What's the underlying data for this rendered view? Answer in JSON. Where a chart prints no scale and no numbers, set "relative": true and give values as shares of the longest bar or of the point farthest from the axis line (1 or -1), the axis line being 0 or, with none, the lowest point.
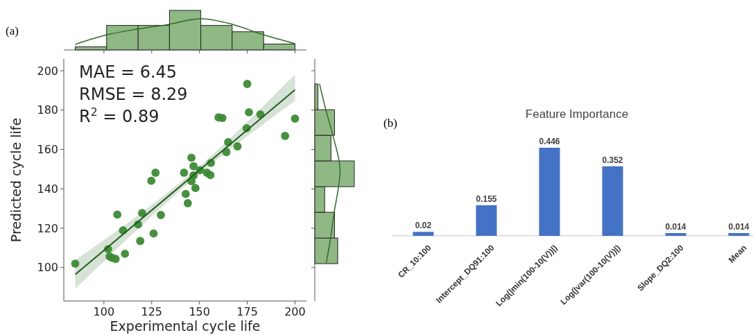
{
  "chart_data": [
    {
      "type": "histogram",
      "relative": true,
      "annotations": [
        "(a)"
      ],
      "xlim": [
        79,
        206
      ],
      "xticks": [
        100,
        125,
        150,
        175,
        200
      ],
      "tick_labels": false,
      "bins": [
        85,
        101.4,
        117.9,
        134.3,
        150.7,
        167.1,
        183.6,
        200
      ],
      "series": [
        {
          "type": "histogram",
          "color": "#8fb884",
          "values": [
            0.08,
            0.62,
            0.62,
            1,
            0.62,
            0.46,
            0.15
          ]
        },
        {
          "type": "line",
          "color": "#2f6b2a",
          "x": [
            85,
            101.4,
            117.9,
            134.3,
            150.7,
            167.1,
            183.6,
            200
          ],
          "values": [
            0.14,
            0.38,
            0.53,
            0.65,
            0.79,
            0.65,
            0.38,
            0.16
          ]
        }
      ]
    },
    {
      "type": "scatter",
      "xlabel": "Experimental cycle life",
      "ylabel": "Predicted cycle life",
      "xlim": [
        79,
        206
      ],
      "ylim": [
        83,
        206
      ],
      "xticks": [
        100,
        125,
        150,
        175,
        200
      ],
      "yticks": [
        100,
        120,
        140,
        160,
        180,
        200
      ],
      "annotations": [
        "MAE = 6.45",
        "RMSE = 8.29",
        "R$^{2}$ = 0.89"
      ],
      "series": [
        {
          "type": "scatter",
          "marker": "circle",
          "color": "#3d8a35",
          "x": [
            85,
            102.2,
            103,
            104.2,
            106.1,
            107,
            110,
            111,
            117.9,
            120,
            119,
            129.8,
            126,
            124.8,
            127,
            141.9,
            142.8,
            143.9,
            145.8,
            145.8,
            146.9,
            146.9,
            147.9,
            150.3,
            153.9,
            156,
            155.7,
            160,
            162,
            164.1,
            165,
            169.9,
            174.7,
            175,
            175.9,
            181.9,
            194.8,
            200
          ],
          "values": [
            102,
            109.4,
            105.6,
            105,
            104.4,
            126.9,
            118.9,
            107,
            121.9,
            127.7,
            113.5,
            126.7,
            117.3,
            144.1,
            148.2,
            148.2,
            137.4,
            132.7,
            155.8,
            143.9,
            151.5,
            146.8,
            140.4,
            149.5,
            148.2,
            153.2,
            147,
            176.3,
            176,
            158.7,
            163.7,
            161.6,
            170.8,
            193.3,
            178.9,
            177.8,
            166.9,
            175.7
          ]
        },
        {
          "type": "line",
          "marker": "none",
          "color": "#1f5e1c",
          "x": [
            85,
            150,
            200
          ],
          "values": [
            96.5,
            149.5,
            190.3
          ],
          "lower": [
            89.2,
            147.5,
            184.8
          ],
          "upper": [
            103.7,
            151.5,
            198.2
          ]
        }
      ]
    },
    {
      "type": "histogram",
      "relative": true,
      "orientation": "horizontal",
      "ylim": [
        83,
        206
      ],
      "yticks": [
        100,
        120,
        140,
        160,
        180,
        200
      ],
      "tick_labels": false,
      "bins": [
        102,
        115,
        128.1,
        141.1,
        154.2,
        167.2,
        180.2,
        193.3
      ],
      "series": [
        {
          "type": "histogram",
          "color": "#8fb884",
          "values": [
            0.58,
            0.5,
            0.25,
            1,
            0.41,
            0.5,
            0.08
          ]
        },
        {
          "type": "line",
          "color": "#2f6b2a",
          "x": [
            102.3,
            115,
            128.1,
            140.9,
            149.1,
            167,
            180.1,
            193.3
          ],
          "values": [
            0.29,
            0.4,
            0.49,
            0.6,
            0.64,
            0.46,
            0.28,
            0.12
          ]
        }
      ]
    },
    {
      "type": "bar",
      "title": "Feature Importance",
      "annotations": [
        "(b)"
      ],
      "categories": [
        "CR_10:100",
        "Intercept_DQ91:100",
        "Log(|min(100-10(V))|)",
        "Log(|var(100-10(V))|)",
        "Slope_DQ2:100",
        "Mean"
      ],
      "values": [
        0.02,
        0.155,
        0.446,
        0.352,
        0.014,
        0.014
      ],
      "color": "#4472c4",
      "data_labels": true
    }
  ]
}
